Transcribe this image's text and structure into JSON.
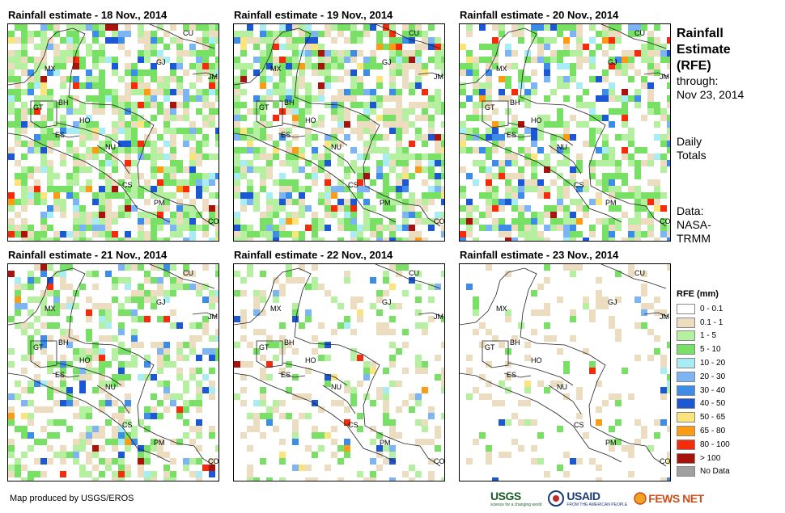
{
  "panels": [
    {
      "title": "Rainfall estimate - 18 Nov., 2014",
      "intensity": 1.0
    },
    {
      "title": "Rainfall estimate - 19 Nov., 2014",
      "intensity": 1.0
    },
    {
      "title": "Rainfall estimate - 20 Nov., 2014",
      "intensity": 0.8
    },
    {
      "title": "Rainfall estimate - 21 Nov., 2014",
      "intensity": 0.6
    },
    {
      "title": "Rainfall estimate - 22 Nov., 2014",
      "intensity": 0.3
    },
    {
      "title": "Rainfall estimate - 23 Nov., 2014",
      "intensity": 0.1
    }
  ],
  "country_labels": [
    "CU",
    "GJ",
    "JM",
    "MX",
    "BH",
    "GT",
    "HO",
    "ES",
    "NU",
    "CS",
    "PM",
    "CO"
  ],
  "sidebar": {
    "title_line1": "Rainfall",
    "title_line2": "Estimate",
    "title_line3": "(RFE)",
    "through_label": "through:",
    "through_date": "Nov 23, 2014",
    "totals_line1": "Daily",
    "totals_line2": "Totals",
    "source_line1": "Data:",
    "source_line2": "NASA-",
    "source_line3": "TRMM"
  },
  "legend": {
    "title": "RFE (mm)",
    "items": [
      {
        "label": "0 - 0.1",
        "color": "#ffffff"
      },
      {
        "label": "0.1 - 1",
        "color": "#ecdcc0"
      },
      {
        "label": "1 - 5",
        "color": "#b4f0a0"
      },
      {
        "label": "5 - 10",
        "color": "#78e064"
      },
      {
        "label": "10 - 20",
        "color": "#a8ecf4"
      },
      {
        "label": "20 - 30",
        "color": "#7cb4f4"
      },
      {
        "label": "30 - 40",
        "color": "#3c8ce8"
      },
      {
        "label": "40 - 50",
        "color": "#1c58d4"
      },
      {
        "label": "50 - 65",
        "color": "#fce47c"
      },
      {
        "label": "65 - 80",
        "color": "#fc9c14"
      },
      {
        "label": "80 - 100",
        "color": "#f42c0c"
      },
      {
        "label": "> 100",
        "color": "#a8140c"
      },
      {
        "label": "No Data",
        "color": "#a0a0a0"
      }
    ]
  },
  "credit": "Map produced by USGS/EROS",
  "logos": {
    "usgs": "USGS",
    "usgs_tag": "science for a changing world",
    "usaid": "USAID",
    "usaid_tag": "FROM THE AMERICAN PEOPLE",
    "fews": "FEWS NET"
  }
}
